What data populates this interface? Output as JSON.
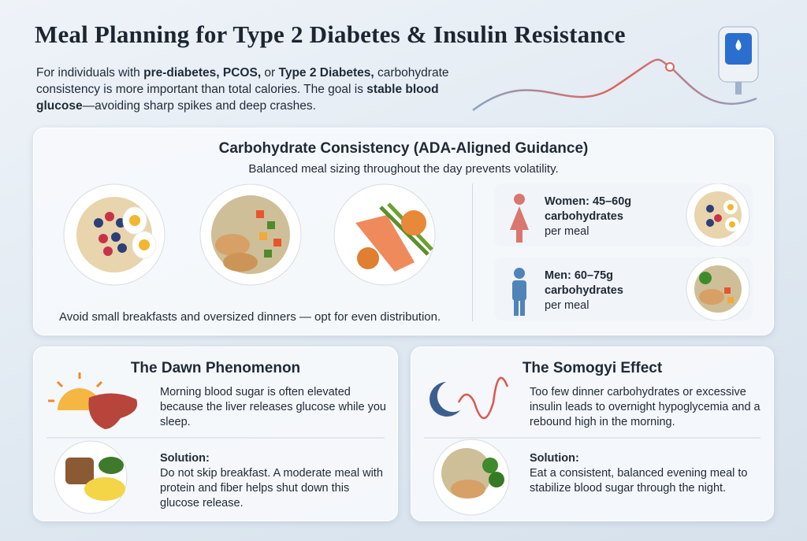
{
  "header": {
    "title": "Meal Planning for Type 2 Diabetes & Insulin Resistance",
    "intro": [
      "For individuals with ",
      "pre-diabetes, PCOS,",
      " or ",
      "Type 2 Diabetes,",
      " carbohydrate consistency is more important than total calories. The goal is ",
      "stable blood glucose",
      "—avoiding sharp spikes and deep crashes."
    ]
  },
  "carb_section": {
    "title": "Carbohydrate Consistency (ADA-Aligned Guidance)",
    "subtitle": "Balanced meal sizing throughout the day prevents volatility.",
    "note": "Avoid small breakfasts and oversized dinners — opt for even distribution.",
    "women": {
      "heading": "Women: 45–60g carbohydrates",
      "detail": "per meal"
    },
    "men": {
      "heading": "Men: 60–75g carbohydrates",
      "detail": "per meal"
    }
  },
  "dawn": {
    "title": "The Dawn Phenomenon",
    "description": "Morning blood sugar is often elevated because the liver releases glucose while you sleep.",
    "solution_label": "Solution:",
    "solution_text": "Do not skip breakfast. A moderate meal with protein and fiber helps shut down this glucose release."
  },
  "somogyi": {
    "title": "The Somogyi Effect",
    "description": "Too few dinner carbohydrates or excessive insulin leads to overnight hypoglycemia and a rebound high in the morning.",
    "solution_label": "Solution:",
    "solution_text": "Eat a consistent, balanced evening meal to stabilize blood sugar through the night."
  }
}
